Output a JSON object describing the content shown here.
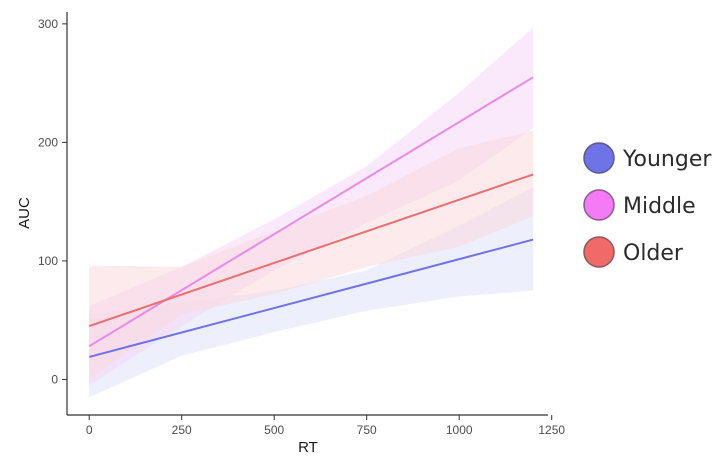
{
  "chart_data": {
    "type": "line",
    "title": "",
    "xlabel": "RT",
    "ylabel": "AUC",
    "xlim": [
      -60,
      1240
    ],
    "ylim": [
      -30,
      310
    ],
    "x_ticks": [
      0,
      250,
      500,
      750,
      1000,
      1250
    ],
    "x_tick_labels": [
      "0",
      "250",
      "500",
      "750",
      "1000",
      "1250"
    ],
    "y_ticks": [
      0,
      100,
      200,
      300
    ],
    "y_tick_labels": [
      "0",
      "100",
      "200",
      "300"
    ],
    "grid": false,
    "legend_position": "right",
    "x": [
      0,
      1200
    ],
    "series": [
      {
        "name": "Younger",
        "color": "#6f73e8",
        "band_color": "#dfe2fb",
        "values": [
          19,
          118
        ],
        "ci_x": [
          0,
          250,
          500,
          750,
          1000,
          1200
        ],
        "ci_low": [
          -15,
          20,
          40,
          58,
          70,
          75
        ],
        "ci_high": [
          55,
          65,
          75,
          92,
          130,
          162
        ]
      },
      {
        "name": "Middle",
        "color": "#e88ae8",
        "band_color": "#f6d7f6",
        "values": [
          28,
          255
        ],
        "ci_x": [
          0,
          250,
          500,
          750,
          1000,
          1200
        ],
        "ci_low": [
          -5,
          45,
          92,
          132,
          168,
          212
        ],
        "ci_high": [
          62,
          95,
          135,
          180,
          242,
          297
        ]
      },
      {
        "name": "Older",
        "color": "#ea6f6f",
        "band_color": "#f9d9dc",
        "values": [
          45,
          173
        ],
        "ci_x": [
          0,
          250,
          500,
          750,
          1000,
          1200
        ],
        "ci_low": [
          0,
          55,
          72,
          95,
          112,
          138
        ],
        "ci_high": [
          96,
          95,
          125,
          155,
          195,
          210
        ]
      }
    ]
  },
  "legend": {
    "items": [
      {
        "label": "Younger",
        "color": "#6f73e8"
      },
      {
        "label": "Middle",
        "color": "#f57af5"
      },
      {
        "label": "Older",
        "color": "#f06a6a"
      }
    ]
  }
}
